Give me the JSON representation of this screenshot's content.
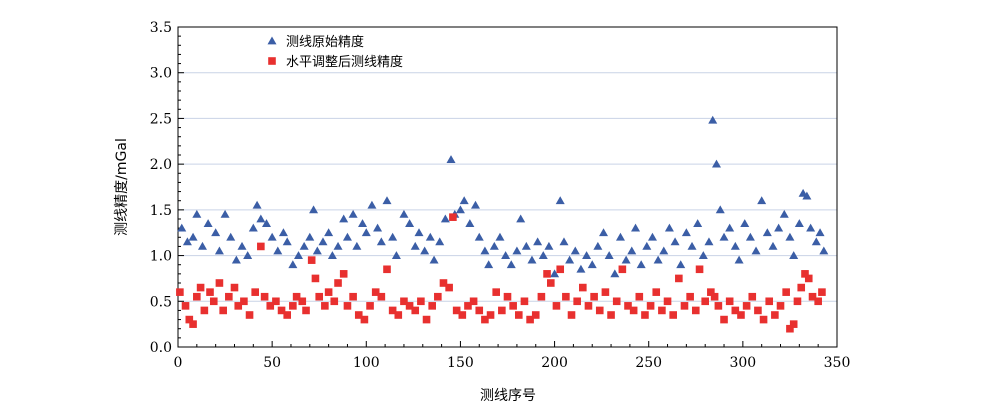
{
  "chart_data": {
    "type": "scatter",
    "title": "",
    "xlabel": "测线序号",
    "ylabel": "测线精度/mGal",
    "xlim": [
      0,
      350
    ],
    "ylim": [
      0.0,
      3.5
    ],
    "x_ticks": [
      "0",
      "50",
      "100",
      "150",
      "200",
      "250",
      "300",
      "350"
    ],
    "y_ticks": [
      "0.0",
      "0.5",
      "1.0",
      "1.5",
      "2.0",
      "2.5",
      "3.0",
      "3.5"
    ],
    "grid": "horizontal",
    "legend_position": "top-left",
    "series": [
      {
        "name": "测线原始精度",
        "marker": "triangle",
        "color": "#3B5EA6",
        "points": [
          [
            2,
            1.3
          ],
          [
            5,
            1.15
          ],
          [
            8,
            1.2
          ],
          [
            10,
            1.45
          ],
          [
            13,
            1.1
          ],
          [
            16,
            1.35
          ],
          [
            20,
            1.25
          ],
          [
            22,
            1.05
          ],
          [
            25,
            1.45
          ],
          [
            28,
            1.2
          ],
          [
            31,
            0.95
          ],
          [
            34,
            1.1
          ],
          [
            37,
            1.0
          ],
          [
            40,
            1.3
          ],
          [
            42,
            1.55
          ],
          [
            44,
            1.4
          ],
          [
            47,
            1.35
          ],
          [
            50,
            1.2
          ],
          [
            53,
            1.05
          ],
          [
            56,
            1.25
          ],
          [
            58,
            1.15
          ],
          [
            61,
            0.9
          ],
          [
            64,
            1.0
          ],
          [
            67,
            1.1
          ],
          [
            70,
            1.2
          ],
          [
            72,
            1.5
          ],
          [
            74,
            1.05
          ],
          [
            77,
            1.15
          ],
          [
            80,
            1.25
          ],
          [
            82,
            1.0
          ],
          [
            85,
            1.1
          ],
          [
            88,
            1.4
          ],
          [
            90,
            1.2
          ],
          [
            93,
            1.45
          ],
          [
            95,
            1.1
          ],
          [
            98,
            1.35
          ],
          [
            100,
            1.25
          ],
          [
            103,
            1.55
          ],
          [
            106,
            1.3
          ],
          [
            108,
            1.15
          ],
          [
            111,
            1.6
          ],
          [
            114,
            1.2
          ],
          [
            116,
            1.0
          ],
          [
            120,
            1.45
          ],
          [
            123,
            1.35
          ],
          [
            126,
            1.1
          ],
          [
            128,
            1.25
          ],
          [
            131,
            1.05
          ],
          [
            134,
            1.2
          ],
          [
            136,
            0.95
          ],
          [
            139,
            1.15
          ],
          [
            142,
            1.4
          ],
          [
            145,
            2.05
          ],
          [
            147,
            1.45
          ],
          [
            150,
            1.5
          ],
          [
            152,
            1.6
          ],
          [
            155,
            1.35
          ],
          [
            158,
            1.55
          ],
          [
            160,
            1.2
          ],
          [
            163,
            1.05
          ],
          [
            165,
            0.9
          ],
          [
            168,
            1.1
          ],
          [
            171,
            1.2
          ],
          [
            174,
            1.0
          ],
          [
            177,
            0.9
          ],
          [
            180,
            1.05
          ],
          [
            182,
            1.4
          ],
          [
            185,
            1.1
          ],
          [
            188,
            0.95
          ],
          [
            191,
            1.15
          ],
          [
            194,
            1.0
          ],
          [
            197,
            1.1
          ],
          [
            200,
            0.8
          ],
          [
            203,
            1.6
          ],
          [
            205,
            1.15
          ],
          [
            208,
            0.95
          ],
          [
            211,
            1.05
          ],
          [
            214,
            0.85
          ],
          [
            217,
            1.0
          ],
          [
            220,
            0.9
          ],
          [
            223,
            1.1
          ],
          [
            226,
            1.25
          ],
          [
            229,
            1.0
          ],
          [
            232,
            0.8
          ],
          [
            235,
            1.2
          ],
          [
            238,
            0.95
          ],
          [
            241,
            1.05
          ],
          [
            243,
            1.3
          ],
          [
            246,
            0.9
          ],
          [
            249,
            1.1
          ],
          [
            252,
            1.2
          ],
          [
            255,
            0.95
          ],
          [
            258,
            1.05
          ],
          [
            261,
            1.3
          ],
          [
            264,
            1.15
          ],
          [
            267,
            0.9
          ],
          [
            270,
            1.25
          ],
          [
            273,
            1.1
          ],
          [
            276,
            1.35
          ],
          [
            279,
            1.0
          ],
          [
            282,
            1.15
          ],
          [
            284,
            2.48
          ],
          [
            286,
            2.0
          ],
          [
            288,
            1.5
          ],
          [
            290,
            1.2
          ],
          [
            293,
            1.3
          ],
          [
            296,
            1.1
          ],
          [
            298,
            0.95
          ],
          [
            301,
            1.35
          ],
          [
            304,
            1.2
          ],
          [
            307,
            1.05
          ],
          [
            310,
            1.6
          ],
          [
            313,
            1.25
          ],
          [
            316,
            1.1
          ],
          [
            319,
            1.3
          ],
          [
            322,
            1.45
          ],
          [
            325,
            1.2
          ],
          [
            327,
            1.0
          ],
          [
            330,
            1.35
          ],
          [
            332,
            1.68
          ],
          [
            334,
            1.65
          ],
          [
            336,
            1.3
          ],
          [
            339,
            1.15
          ],
          [
            341,
            1.25
          ],
          [
            343,
            1.05
          ]
        ]
      },
      {
        "name": "水平调整后测线精度",
        "marker": "square",
        "color": "#E8302F",
        "points": [
          [
            1,
            0.6
          ],
          [
            4,
            0.45
          ],
          [
            6,
            0.3
          ],
          [
            8,
            0.25
          ],
          [
            10,
            0.55
          ],
          [
            12,
            0.65
          ],
          [
            14,
            0.4
          ],
          [
            17,
            0.6
          ],
          [
            19,
            0.5
          ],
          [
            22,
            0.7
          ],
          [
            24,
            0.4
          ],
          [
            27,
            0.55
          ],
          [
            30,
            0.65
          ],
          [
            32,
            0.45
          ],
          [
            35,
            0.5
          ],
          [
            38,
            0.35
          ],
          [
            41,
            0.6
          ],
          [
            44,
            1.1
          ],
          [
            46,
            0.55
          ],
          [
            49,
            0.45
          ],
          [
            52,
            0.5
          ],
          [
            55,
            0.4
          ],
          [
            58,
            0.35
          ],
          [
            61,
            0.45
          ],
          [
            63,
            0.55
          ],
          [
            66,
            0.5
          ],
          [
            68,
            0.4
          ],
          [
            71,
            0.95
          ],
          [
            73,
            0.75
          ],
          [
            75,
            0.55
          ],
          [
            78,
            0.45
          ],
          [
            80,
            0.6
          ],
          [
            83,
            0.5
          ],
          [
            85,
            0.7
          ],
          [
            88,
            0.8
          ],
          [
            90,
            0.45
          ],
          [
            93,
            0.55
          ],
          [
            96,
            0.35
          ],
          [
            99,
            0.3
          ],
          [
            102,
            0.45
          ],
          [
            105,
            0.6
          ],
          [
            108,
            0.55
          ],
          [
            111,
            0.85
          ],
          [
            114,
            0.4
          ],
          [
            117,
            0.35
          ],
          [
            120,
            0.5
          ],
          [
            123,
            0.45
          ],
          [
            126,
            0.4
          ],
          [
            129,
            0.5
          ],
          [
            132,
            0.3
          ],
          [
            135,
            0.45
          ],
          [
            138,
            0.55
          ],
          [
            141,
            0.7
          ],
          [
            144,
            0.65
          ],
          [
            146,
            1.42
          ],
          [
            148,
            0.4
          ],
          [
            151,
            0.35
          ],
          [
            154,
            0.45
          ],
          [
            157,
            0.5
          ],
          [
            160,
            0.4
          ],
          [
            163,
            0.3
          ],
          [
            166,
            0.35
          ],
          [
            169,
            0.6
          ],
          [
            172,
            0.4
          ],
          [
            175,
            0.55
          ],
          [
            178,
            0.45
          ],
          [
            181,
            0.35
          ],
          [
            184,
            0.5
          ],
          [
            187,
            0.3
          ],
          [
            190,
            0.35
          ],
          [
            193,
            0.55
          ],
          [
            196,
            0.8
          ],
          [
            198,
            0.7
          ],
          [
            201,
            0.45
          ],
          [
            203,
            0.85
          ],
          [
            206,
            0.55
          ],
          [
            209,
            0.35
          ],
          [
            212,
            0.5
          ],
          [
            215,
            0.65
          ],
          [
            218,
            0.45
          ],
          [
            221,
            0.55
          ],
          [
            224,
            0.4
          ],
          [
            227,
            0.6
          ],
          [
            230,
            0.35
          ],
          [
            233,
            0.5
          ],
          [
            236,
            0.85
          ],
          [
            239,
            0.45
          ],
          [
            242,
            0.4
          ],
          [
            245,
            0.55
          ],
          [
            248,
            0.35
          ],
          [
            251,
            0.45
          ],
          [
            254,
            0.6
          ],
          [
            257,
            0.4
          ],
          [
            260,
            0.5
          ],
          [
            263,
            0.35
          ],
          [
            266,
            0.75
          ],
          [
            269,
            0.45
          ],
          [
            272,
            0.55
          ],
          [
            275,
            0.4
          ],
          [
            277,
            0.85
          ],
          [
            280,
            0.5
          ],
          [
            283,
            0.6
          ],
          [
            285,
            0.55
          ],
          [
            287,
            0.45
          ],
          [
            290,
            0.3
          ],
          [
            293,
            0.5
          ],
          [
            296,
            0.4
          ],
          [
            299,
            0.35
          ],
          [
            302,
            0.45
          ],
          [
            305,
            0.55
          ],
          [
            308,
            0.4
          ],
          [
            311,
            0.3
          ],
          [
            314,
            0.5
          ],
          [
            317,
            0.35
          ],
          [
            320,
            0.45
          ],
          [
            323,
            0.6
          ],
          [
            325,
            0.2
          ],
          [
            327,
            0.25
          ],
          [
            329,
            0.5
          ],
          [
            331,
            0.65
          ],
          [
            333,
            0.8
          ],
          [
            335,
            0.75
          ],
          [
            337,
            0.55
          ],
          [
            340,
            0.5
          ],
          [
            342,
            0.6
          ]
        ]
      }
    ]
  }
}
